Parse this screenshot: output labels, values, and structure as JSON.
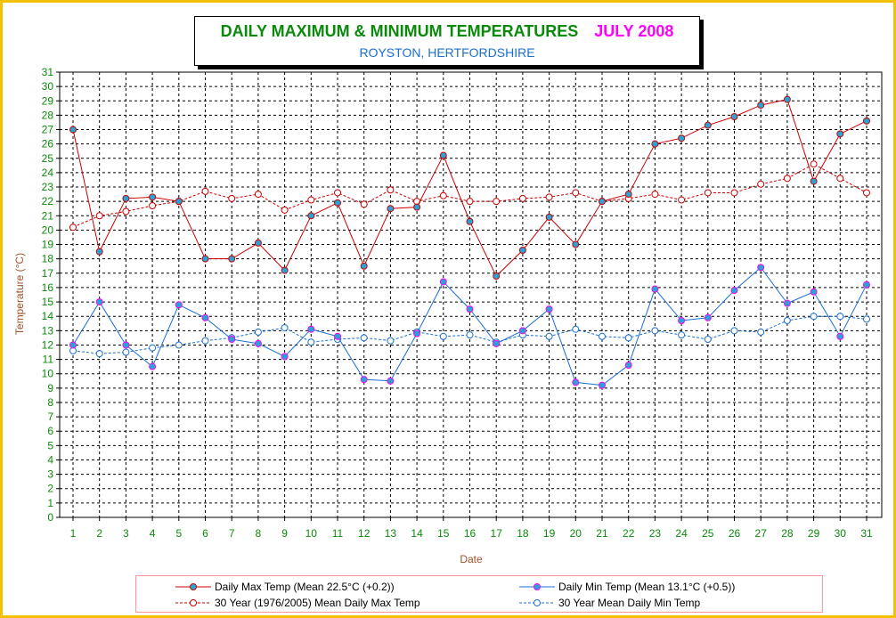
{
  "title": "DAILY MAXIMUM &  MINIMUM  TEMPERATURES",
  "month": "JULY 2008",
  "subtitle": "ROYSTON, HERTFORDSHIRE",
  "colors": {
    "frame": "#f2c200",
    "title": "#0a8a0a",
    "month": "#ff00ff",
    "subtitle": "#1a6fd1",
    "max": "#cc0000",
    "min": "#1a6fd1",
    "tick": "#0a8a0a",
    "axis_label": "#a0522d"
  },
  "chart_data": {
    "type": "line",
    "xlabel": "Date",
    "ylabel": "Temperature (°C)",
    "ylim": [
      0,
      31
    ],
    "xlim": [
      1,
      31
    ],
    "grid": true,
    "legend": "bottom",
    "x": [
      1,
      2,
      3,
      4,
      5,
      6,
      7,
      8,
      9,
      10,
      11,
      12,
      13,
      14,
      15,
      16,
      17,
      18,
      19,
      20,
      21,
      22,
      23,
      24,
      25,
      26,
      27,
      28,
      29,
      30,
      31
    ],
    "series": [
      {
        "name": "Daily Max Temp (Mean 22.5°C (+0.2))",
        "style": "solid",
        "color": "#cc0000",
        "marker": "#29a3d6",
        "values": [
          27.0,
          18.5,
          22.2,
          22.3,
          22.0,
          18.0,
          18.0,
          19.1,
          17.2,
          21.0,
          21.9,
          17.5,
          21.5,
          21.6,
          25.2,
          20.6,
          16.8,
          18.6,
          20.9,
          19.0,
          22.0,
          22.5,
          26.0,
          26.4,
          27.3,
          27.9,
          28.7,
          29.1,
          23.4,
          26.7,
          27.6
        ]
      },
      {
        "name": "Daily Min Temp (Mean 13.1°C (+0.5))",
        "style": "solid",
        "color": "#1a6fd1",
        "marker": "#29a3d6",
        "values": [
          12.0,
          15.0,
          12.0,
          10.5,
          14.8,
          13.9,
          12.4,
          12.1,
          11.2,
          13.1,
          12.6,
          9.6,
          9.5,
          12.8,
          16.4,
          14.5,
          12.1,
          13.0,
          14.5,
          9.4,
          9.2,
          10.6,
          15.9,
          13.7,
          13.9,
          15.8,
          17.4,
          14.9,
          15.7,
          12.6,
          16.2
        ]
      },
      {
        "name": "30 Year (1976/2005) Mean Daily Max Temp",
        "style": "dashed",
        "color": "#cc0000",
        "marker": "hollow",
        "values": [
          20.2,
          21.0,
          21.3,
          21.7,
          22.0,
          22.7,
          22.2,
          22.5,
          21.4,
          22.1,
          22.6,
          21.8,
          22.8,
          22.0,
          22.4,
          22.0,
          22.0,
          22.2,
          22.3,
          22.6,
          22.0,
          22.2,
          22.5,
          22.1,
          22.6,
          22.6,
          23.2,
          23.6,
          24.6,
          23.6,
          22.6
        ]
      },
      {
        "name": "30 Year Mean Daily Min Temp",
        "style": "dashed",
        "color": "#1a6fd1",
        "marker": "hollow",
        "values": [
          11.6,
          11.4,
          11.5,
          11.8,
          12.0,
          12.3,
          12.5,
          12.9,
          13.2,
          12.2,
          12.4,
          12.5,
          12.3,
          12.9,
          12.6,
          12.7,
          12.2,
          12.7,
          12.6,
          13.1,
          12.6,
          12.5,
          13.0,
          12.7,
          12.4,
          13.0,
          12.9,
          13.7,
          14.0,
          14.0,
          13.8
        ]
      }
    ]
  }
}
